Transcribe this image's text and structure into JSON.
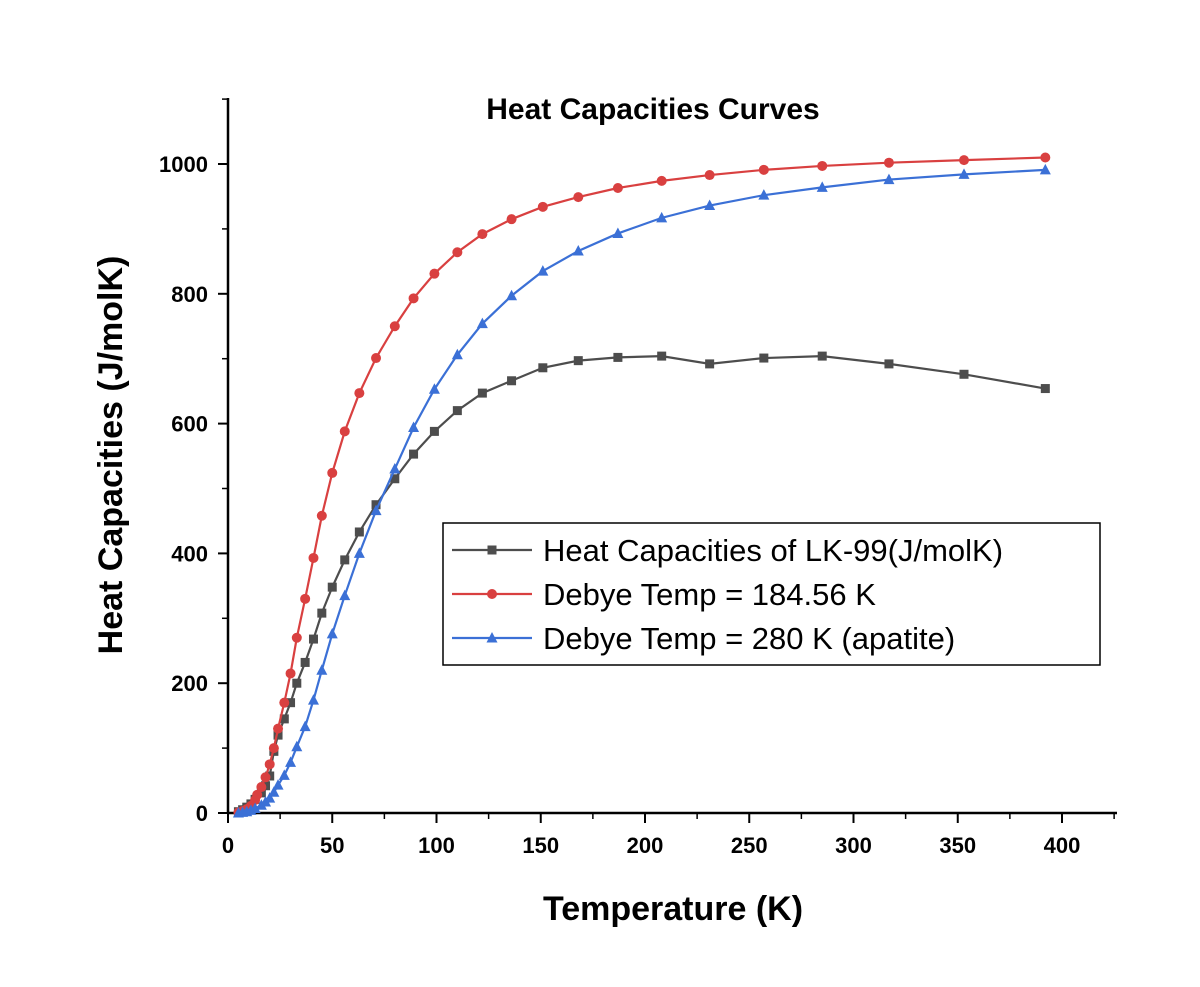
{
  "chart_data": {
    "type": "line",
    "title": "Heat Capacities Curves",
    "xlabel": "Temperature (K)",
    "ylabel": "Heat Capacities (J/molK)",
    "xlim": [
      0,
      425
    ],
    "ylim": [
      0,
      1100
    ],
    "xticks": [
      0,
      50,
      100,
      150,
      200,
      250,
      300,
      350,
      400
    ],
    "yticks": [
      0,
      200,
      400,
      600,
      800,
      1000
    ],
    "grid": false,
    "legend_position": "center-right",
    "series": [
      {
        "name": "Heat Capacities of LK-99(J/molK)",
        "color": "#4d4d4d",
        "marker": "square",
        "x": [
          5,
          7,
          9,
          11,
          13,
          16,
          18,
          20,
          22,
          24,
          27,
          30,
          33,
          37,
          41,
          45,
          50,
          56,
          63,
          71,
          80,
          89,
          99,
          110,
          122,
          136,
          151,
          168,
          187,
          208,
          231,
          257,
          285,
          317,
          353,
          392
        ],
        "y": [
          2,
          5,
          9,
          14,
          21,
          31,
          42,
          57,
          95,
          120,
          145,
          170,
          200,
          232,
          268,
          308,
          348,
          390,
          433,
          475,
          515,
          553,
          588,
          620,
          647,
          666,
          686,
          697,
          702,
          704,
          692,
          701,
          704,
          692,
          676,
          654
        ]
      },
      {
        "name": "Debye Temp = 184.56 K",
        "color": "#d94040",
        "marker": "circle",
        "x": [
          5,
          7,
          9,
          11,
          13,
          14,
          16,
          18,
          20,
          22,
          24,
          27,
          30,
          33,
          37,
          41,
          45,
          50,
          56,
          63,
          71,
          80,
          89,
          99,
          110,
          122,
          136,
          151,
          168,
          187,
          208,
          231,
          257,
          285,
          317,
          353,
          392
        ],
        "y": [
          1,
          3,
          6,
          11,
          20,
          28,
          40,
          55,
          75,
          100,
          130,
          170,
          215,
          270,
          330,
          393,
          458,
          524,
          588,
          647,
          701,
          750,
          793,
          831,
          864,
          892,
          915,
          934,
          949,
          963,
          974,
          983,
          991,
          997,
          1002,
          1006,
          1010
        ]
      },
      {
        "name": "Debye Temp = 280 K (apatite)",
        "color": "#3b70d6",
        "marker": "triangle",
        "x": [
          5,
          7,
          9,
          11,
          13,
          16,
          18,
          20,
          22,
          24,
          27,
          30,
          33,
          37,
          41,
          45,
          50,
          56,
          63,
          71,
          80,
          89,
          99,
          110,
          122,
          136,
          151,
          168,
          187,
          208,
          231,
          257,
          285,
          317,
          353,
          392
        ],
        "y": [
          0,
          1,
          2,
          4,
          7,
          12,
          17,
          23,
          32,
          43,
          58,
          78,
          102,
          133,
          174,
          220,
          276,
          335,
          400,
          466,
          530,
          594,
          653,
          706,
          754,
          797,
          835,
          866,
          893,
          917,
          936,
          952,
          964,
          976,
          984,
          991
        ]
      }
    ]
  }
}
